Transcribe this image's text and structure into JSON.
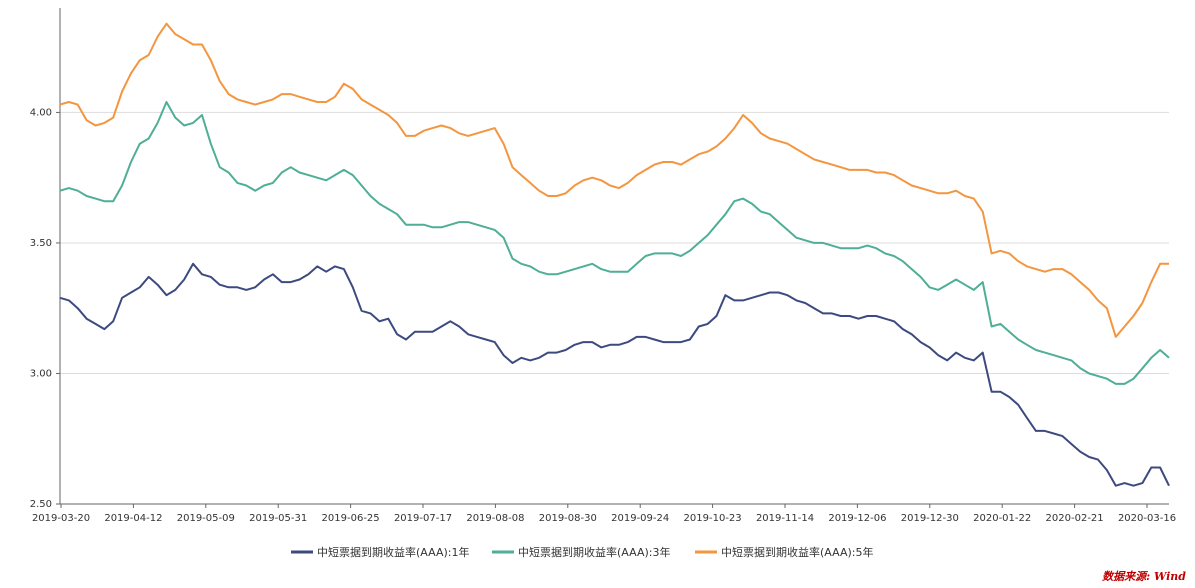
{
  "source_note": "数据来源: Wind",
  "colors": {
    "series1": "#3d4a80",
    "series2": "#4fae96",
    "series3": "#f4953f",
    "source": "#c00000"
  },
  "chart_data": {
    "type": "line",
    "title": "",
    "xlabel": "",
    "ylabel": "",
    "ylim": [
      2.5,
      4.4
    ],
    "yticks": [
      "2.50",
      "3.00",
      "3.50",
      "4.00"
    ],
    "x_tick_labels": [
      "2019-03-20",
      "2019-04-12",
      "2019-05-09",
      "2019-05-31",
      "2019-06-25",
      "2019-07-17",
      "2019-08-08",
      "2019-08-30",
      "2019-09-24",
      "2019-10-23",
      "2019-11-14",
      "2019-12-06",
      "2019-12-30",
      "2020-01-22",
      "2020-02-21",
      "2020-03-16"
    ],
    "legend_position": "bottom",
    "grid": "horizontal",
    "series": [
      {
        "name": "中短票据到期收益率(AAA):1年",
        "values": [
          3.29,
          3.28,
          3.25,
          3.21,
          3.19,
          3.17,
          3.2,
          3.29,
          3.31,
          3.33,
          3.37,
          3.34,
          3.3,
          3.32,
          3.36,
          3.42,
          3.38,
          3.37,
          3.34,
          3.33,
          3.33,
          3.32,
          3.33,
          3.36,
          3.38,
          3.35,
          3.35,
          3.36,
          3.38,
          3.41,
          3.39,
          3.41,
          3.4,
          3.33,
          3.24,
          3.23,
          3.2,
          3.21,
          3.15,
          3.13,
          3.16,
          3.16,
          3.16,
          3.18,
          3.2,
          3.18,
          3.15,
          3.14,
          3.13,
          3.12,
          3.07,
          3.04,
          3.06,
          3.05,
          3.06,
          3.08,
          3.08,
          3.09,
          3.11,
          3.12,
          3.12,
          3.1,
          3.11,
          3.11,
          3.12,
          3.14,
          3.14,
          3.13,
          3.12,
          3.12,
          3.12,
          3.13,
          3.18,
          3.19,
          3.22,
          3.3,
          3.28,
          3.28,
          3.29,
          3.3,
          3.31,
          3.31,
          3.3,
          3.28,
          3.27,
          3.25,
          3.23,
          3.23,
          3.22,
          3.22,
          3.21,
          3.22,
          3.22,
          3.21,
          3.2,
          3.17,
          3.15,
          3.12,
          3.1,
          3.07,
          3.05,
          3.08,
          3.06,
          3.05,
          3.08,
          2.93,
          2.93,
          2.91,
          2.88,
          2.83,
          2.78,
          2.78,
          2.77,
          2.76,
          2.73,
          2.7,
          2.68,
          2.67,
          2.63,
          2.57,
          2.58,
          2.57,
          2.58,
          2.64,
          2.64,
          2.57
        ]
      },
      {
        "name": "中短票据到期收益率(AAA):3年",
        "values": [
          3.7,
          3.71,
          3.7,
          3.68,
          3.67,
          3.66,
          3.66,
          3.72,
          3.81,
          3.88,
          3.9,
          3.96,
          4.04,
          3.98,
          3.95,
          3.96,
          3.99,
          3.88,
          3.79,
          3.77,
          3.73,
          3.72,
          3.7,
          3.72,
          3.73,
          3.77,
          3.79,
          3.77,
          3.76,
          3.75,
          3.74,
          3.76,
          3.78,
          3.76,
          3.72,
          3.68,
          3.65,
          3.63,
          3.61,
          3.57,
          3.57,
          3.57,
          3.56,
          3.56,
          3.57,
          3.58,
          3.58,
          3.57,
          3.56,
          3.55,
          3.52,
          3.44,
          3.42,
          3.41,
          3.39,
          3.38,
          3.38,
          3.39,
          3.4,
          3.41,
          3.42,
          3.4,
          3.39,
          3.39,
          3.39,
          3.42,
          3.45,
          3.46,
          3.46,
          3.46,
          3.45,
          3.47,
          3.5,
          3.53,
          3.57,
          3.61,
          3.66,
          3.67,
          3.65,
          3.62,
          3.61,
          3.58,
          3.55,
          3.52,
          3.51,
          3.5,
          3.5,
          3.49,
          3.48,
          3.48,
          3.48,
          3.49,
          3.48,
          3.46,
          3.45,
          3.43,
          3.4,
          3.37,
          3.33,
          3.32,
          3.34,
          3.36,
          3.34,
          3.32,
          3.35,
          3.18,
          3.19,
          3.16,
          3.13,
          3.11,
          3.09,
          3.08,
          3.07,
          3.06,
          3.05,
          3.02,
          3.0,
          2.99,
          2.98,
          2.96,
          2.96,
          2.98,
          3.02,
          3.06,
          3.09,
          3.06
        ]
      },
      {
        "name": "中短票据到期收益率(AAA):5年",
        "values": [
          4.03,
          4.04,
          4.03,
          3.97,
          3.95,
          3.96,
          3.98,
          4.08,
          4.15,
          4.2,
          4.22,
          4.29,
          4.34,
          4.3,
          4.28,
          4.26,
          4.26,
          4.2,
          4.12,
          4.07,
          4.05,
          4.04,
          4.03,
          4.04,
          4.05,
          4.07,
          4.07,
          4.06,
          4.05,
          4.04,
          4.04,
          4.06,
          4.11,
          4.09,
          4.05,
          4.03,
          4.01,
          3.99,
          3.96,
          3.91,
          3.91,
          3.93,
          3.94,
          3.95,
          3.94,
          3.92,
          3.91,
          3.92,
          3.93,
          3.94,
          3.88,
          3.79,
          3.76,
          3.73,
          3.7,
          3.68,
          3.68,
          3.69,
          3.72,
          3.74,
          3.75,
          3.74,
          3.72,
          3.71,
          3.73,
          3.76,
          3.78,
          3.8,
          3.81,
          3.81,
          3.8,
          3.82,
          3.84,
          3.85,
          3.87,
          3.9,
          3.94,
          3.99,
          3.96,
          3.92,
          3.9,
          3.89,
          3.88,
          3.86,
          3.84,
          3.82,
          3.81,
          3.8,
          3.79,
          3.78,
          3.78,
          3.78,
          3.77,
          3.77,
          3.76,
          3.74,
          3.72,
          3.71,
          3.7,
          3.69,
          3.69,
          3.7,
          3.68,
          3.67,
          3.62,
          3.46,
          3.47,
          3.46,
          3.43,
          3.41,
          3.4,
          3.39,
          3.4,
          3.4,
          3.38,
          3.35,
          3.32,
          3.28,
          3.25,
          3.14,
          3.18,
          3.22,
          3.27,
          3.35,
          3.42,
          3.42
        ]
      }
    ]
  }
}
